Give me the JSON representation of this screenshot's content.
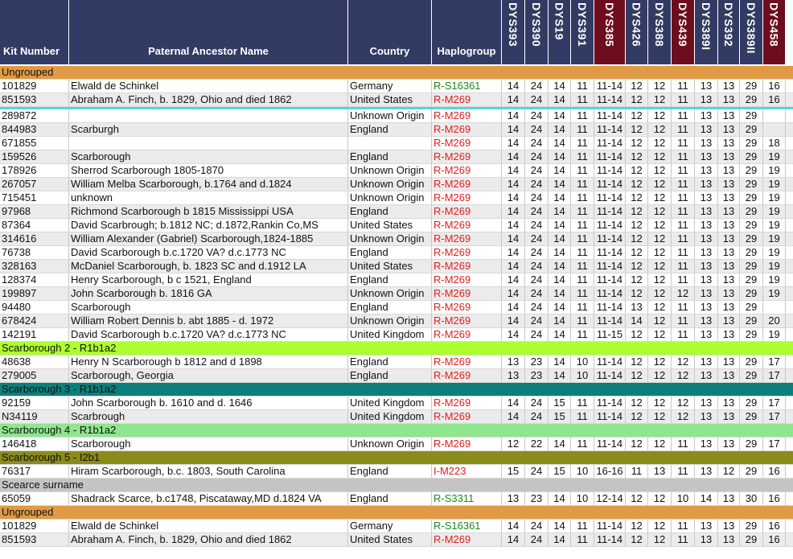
{
  "columns": {
    "kit": "Kit Number",
    "name": "Paternal Ancestor Name",
    "country": "Country",
    "haplogroup": "Haplogroup",
    "markers": [
      {
        "label": "DYS393",
        "highlight": false
      },
      {
        "label": "DYS390",
        "highlight": false
      },
      {
        "label": "DYS19",
        "highlight": false
      },
      {
        "label": "DYS391",
        "highlight": false
      },
      {
        "label": "DYS385",
        "highlight": true
      },
      {
        "label": "DYS426",
        "highlight": false
      },
      {
        "label": "DYS388",
        "highlight": false
      },
      {
        "label": "DYS439",
        "highlight": true
      },
      {
        "label": "DYS389I",
        "highlight": false
      },
      {
        "label": "DYS392",
        "highlight": false
      },
      {
        "label": "DYS389II",
        "highlight": false
      },
      {
        "label": "DYS458",
        "highlight": true
      }
    ]
  },
  "colors": {
    "header_bg": "#323b63",
    "header_highlight": "#6e0d1e",
    "haplo_red": "#e02020",
    "haplo_green": "#1b8a1b",
    "separator": "#4dd8e0"
  },
  "rows": [
    {
      "type": "group",
      "label": "Ungrouped",
      "color": "#e09a45"
    },
    {
      "kit": "101829",
      "name": "Elwald de Schinkel",
      "country": "Germany",
      "hap": "R-S16361",
      "hapColor": "green",
      "values": [
        "14",
        "24",
        "14",
        "11",
        "11-14",
        "12",
        "12",
        "11",
        "13",
        "13",
        "29",
        "16"
      ]
    },
    {
      "kit": "851593",
      "name": "Abraham A. Finch, b. 1829, Ohio and died 1862",
      "country": "United States",
      "hap": "R-M269",
      "hapColor": "red",
      "values": [
        "14",
        "24",
        "14",
        "11",
        "11-14",
        "12",
        "12",
        "11",
        "13",
        "13",
        "29",
        "16"
      ]
    },
    {
      "type": "sep"
    },
    {
      "kit": "289872",
      "name": "",
      "country": "Unknown Origin",
      "hap": "R-M269",
      "hapColor": "red",
      "values": [
        "14",
        "24",
        "14",
        "11",
        "11-14",
        "12",
        "12",
        "11",
        "13",
        "13",
        "29",
        ""
      ]
    },
    {
      "kit": "844983",
      "name": "Scarburgh",
      "country": "England",
      "hap": "R-M269",
      "hapColor": "red",
      "values": [
        "14",
        "24",
        "14",
        "11",
        "11-14",
        "12",
        "12",
        "11",
        "13",
        "13",
        "29",
        ""
      ]
    },
    {
      "kit": "671855",
      "name": "",
      "country": "",
      "hap": "R-M269",
      "hapColor": "red",
      "values": [
        "14",
        "24",
        "14",
        "11",
        "11-14",
        "12",
        "12",
        "11",
        "13",
        "13",
        "29",
        "18"
      ]
    },
    {
      "kit": "159526",
      "name": "Scarborough",
      "country": "England",
      "hap": "R-M269",
      "hapColor": "red",
      "values": [
        "14",
        "24",
        "14",
        "11",
        "11-14",
        "12",
        "12",
        "11",
        "13",
        "13",
        "29",
        "19"
      ]
    },
    {
      "kit": "178926",
      "name": "Sherrod Scarborough 1805-1870",
      "country": "Unknown Origin",
      "hap": "R-M269",
      "hapColor": "red",
      "values": [
        "14",
        "24",
        "14",
        "11",
        "11-14",
        "12",
        "12",
        "11",
        "13",
        "13",
        "29",
        "19"
      ]
    },
    {
      "kit": "267057",
      "name": "William Melba Scarborough, b.1764 and d.1824",
      "country": "Unknown Origin",
      "hap": "R-M269",
      "hapColor": "red",
      "values": [
        "14",
        "24",
        "14",
        "11",
        "11-14",
        "12",
        "12",
        "11",
        "13",
        "13",
        "29",
        "19"
      ]
    },
    {
      "kit": "715451",
      "name": "unknown",
      "country": "Unknown Origin",
      "hap": "R-M269",
      "hapColor": "red",
      "values": [
        "14",
        "24",
        "14",
        "11",
        "11-14",
        "12",
        "12",
        "11",
        "13",
        "13",
        "29",
        "19"
      ]
    },
    {
      "kit": "97968",
      "name": "Richmond Scarborough b 1815 Mississippi USA",
      "country": "England",
      "hap": "R-M269",
      "hapColor": "red",
      "values": [
        "14",
        "24",
        "14",
        "11",
        "11-14",
        "12",
        "12",
        "11",
        "13",
        "13",
        "29",
        "19"
      ]
    },
    {
      "kit": "87364",
      "name": "David Scarbrough; b.1812 NC; d.1872,Rankin Co,MS",
      "country": "United States",
      "hap": "R-M269",
      "hapColor": "red",
      "values": [
        "14",
        "24",
        "14",
        "11",
        "11-14",
        "12",
        "12",
        "11",
        "13",
        "13",
        "29",
        "19"
      ]
    },
    {
      "kit": "314616",
      "name": "William Alexander (Gabriel) Scarborough,1824-1885",
      "country": "Unknown Origin",
      "hap": "R-M269",
      "hapColor": "red",
      "values": [
        "14",
        "24",
        "14",
        "11",
        "11-14",
        "12",
        "12",
        "11",
        "13",
        "13",
        "29",
        "19"
      ]
    },
    {
      "kit": "76738",
      "name": "David Scarborough b.c.1720 VA? d.c.1773 NC",
      "country": "England",
      "hap": "R-M269",
      "hapColor": "red",
      "values": [
        "14",
        "24",
        "14",
        "11",
        "11-14",
        "12",
        "12",
        "11",
        "13",
        "13",
        "29",
        "19"
      ]
    },
    {
      "kit": "328163",
      "name": "McDaniel Scarborough, b. 1823 SC and d.1912 LA",
      "country": "United States",
      "hap": "R-M269",
      "hapColor": "red",
      "values": [
        "14",
        "24",
        "14",
        "11",
        "11-14",
        "12",
        "12",
        "11",
        "13",
        "13",
        "29",
        "19"
      ]
    },
    {
      "kit": "128374",
      "name": "Henry Scarborough, b c 1521, England",
      "country": "England",
      "hap": "R-M269",
      "hapColor": "red",
      "values": [
        "14",
        "24",
        "14",
        "11",
        "11-14",
        "12",
        "12",
        "11",
        "13",
        "13",
        "29",
        "19"
      ]
    },
    {
      "kit": "199897",
      "name": "John Scarborough b. 1816 GA",
      "country": "Unknown Origin",
      "hap": "R-M269",
      "hapColor": "red",
      "values": [
        "14",
        "24",
        "14",
        "11",
        "11-14",
        "12",
        "12",
        "12",
        "13",
        "13",
        "29",
        "19"
      ]
    },
    {
      "kit": "94480",
      "name": "Scarborough",
      "country": "England",
      "hap": "R-M269",
      "hapColor": "red",
      "values": [
        "14",
        "24",
        "14",
        "11",
        "11-14",
        "13",
        "12",
        "11",
        "13",
        "13",
        "29",
        ""
      ]
    },
    {
      "kit": "678424",
      "name": "William Robert Dennis b. abt 1885 - d. 1972",
      "country": "Unknown Origin",
      "hap": "R-M269",
      "hapColor": "red",
      "values": [
        "14",
        "24",
        "14",
        "11",
        "11-14",
        "14",
        "12",
        "11",
        "13",
        "13",
        "29",
        "20"
      ]
    },
    {
      "kit": "142191",
      "name": "David Scarborough b.c.1720 VA? d.c.1773 NC",
      "country": "United Kingdom",
      "hap": "R-M269",
      "hapColor": "red",
      "values": [
        "14",
        "24",
        "14",
        "11",
        "11-15",
        "12",
        "12",
        "11",
        "13",
        "13",
        "29",
        "19"
      ]
    },
    {
      "type": "group",
      "label": "Scarborough 2 - R1b1a2",
      "color": "#adff2f"
    },
    {
      "kit": "48638",
      "name": "Henry N Scarborough b 1812 and d 1898",
      "country": "England",
      "hap": "R-M269",
      "hapColor": "red",
      "values": [
        "13",
        "23",
        "14",
        "10",
        "11-14",
        "12",
        "12",
        "12",
        "13",
        "13",
        "29",
        "17"
      ]
    },
    {
      "kit": "279005",
      "name": "Scarborough, Georgia",
      "country": "England",
      "hap": "R-M269",
      "hapColor": "red",
      "values": [
        "13",
        "23",
        "14",
        "10",
        "11-14",
        "12",
        "12",
        "12",
        "13",
        "13",
        "29",
        "17"
      ]
    },
    {
      "type": "group",
      "label": "Scarborough 3 - R1b1a2",
      "color": "#0d7f7a"
    },
    {
      "kit": "92159",
      "name": "John Scarborough b. 1610 and d. 1646",
      "country": "United Kingdom",
      "hap": "R-M269",
      "hapColor": "red",
      "values": [
        "14",
        "24",
        "15",
        "11",
        "11-14",
        "12",
        "12",
        "12",
        "13",
        "13",
        "29",
        "17"
      ]
    },
    {
      "kit": "N34119",
      "name": "Scarbrough",
      "country": "United Kingdom",
      "hap": "R-M269",
      "hapColor": "red",
      "values": [
        "14",
        "24",
        "15",
        "11",
        "11-14",
        "12",
        "12",
        "12",
        "13",
        "13",
        "29",
        "17"
      ]
    },
    {
      "type": "group",
      "label": "Scarborough 4 - R1b1a2",
      "color": "#8fe68f"
    },
    {
      "kit": "146418",
      "name": "Scarborough",
      "country": "Unknown Origin",
      "hap": "R-M269",
      "hapColor": "red",
      "values": [
        "12",
        "22",
        "14",
        "11",
        "11-14",
        "12",
        "12",
        "11",
        "13",
        "13",
        "29",
        "17"
      ]
    },
    {
      "type": "group",
      "label": "Scarborough 5 - I2b1",
      "color": "#8b8b1a"
    },
    {
      "kit": "76317",
      "name": "Hiram Scarborough, b.c. 1803, South Carolina",
      "country": "England",
      "hap": "I-M223",
      "hapColor": "red",
      "values": [
        "15",
        "24",
        "15",
        "10",
        "16-16",
        "11",
        "13",
        "11",
        "13",
        "12",
        "29",
        "16"
      ]
    },
    {
      "type": "group",
      "label": "Scearce surname",
      "color": "#c4c4c4"
    },
    {
      "kit": "65059",
      "name": "Shadrack Scarce, b.c1748, Piscataway,MD d.1824 VA",
      "country": "England",
      "hap": "R-S3311",
      "hapColor": "green",
      "values": [
        "13",
        "23",
        "14",
        "10",
        "12-14",
        "12",
        "12",
        "10",
        "14",
        "13",
        "30",
        "16"
      ]
    },
    {
      "type": "group",
      "label": "Ungrouped",
      "color": "#e09a45"
    },
    {
      "kit": "101829",
      "name": "Elwald de Schinkel",
      "country": "Germany",
      "hap": "R-S16361",
      "hapColor": "green",
      "values": [
        "14",
        "24",
        "14",
        "11",
        "11-14",
        "12",
        "12",
        "11",
        "13",
        "13",
        "29",
        "16"
      ]
    },
    {
      "kit": "851593",
      "name": "Abraham A. Finch, b. 1829, Ohio and died 1862",
      "country": "United States",
      "hap": "R-M269",
      "hapColor": "red",
      "values": [
        "14",
        "24",
        "14",
        "11",
        "11-14",
        "12",
        "12",
        "11",
        "13",
        "13",
        "29",
        "16"
      ]
    }
  ]
}
